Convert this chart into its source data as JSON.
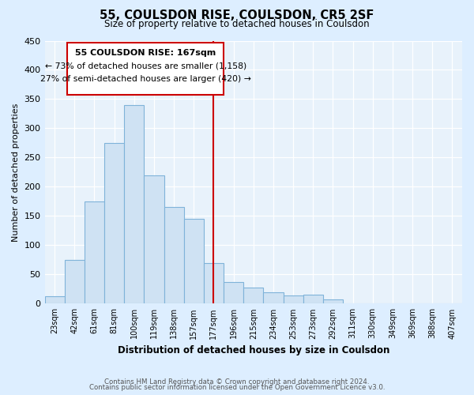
{
  "title": "55, COULSDON RISE, COULSDON, CR5 2SF",
  "subtitle": "Size of property relative to detached houses in Coulsdon",
  "xlabel": "Distribution of detached houses by size in Coulsdon",
  "ylabel": "Number of detached properties",
  "bar_labels": [
    "23sqm",
    "42sqm",
    "61sqm",
    "81sqm",
    "100sqm",
    "119sqm",
    "138sqm",
    "157sqm",
    "177sqm",
    "196sqm",
    "215sqm",
    "234sqm",
    "253sqm",
    "273sqm",
    "292sqm",
    "311sqm",
    "330sqm",
    "349sqm",
    "369sqm",
    "388sqm",
    "407sqm"
  ],
  "bar_values": [
    13,
    75,
    175,
    275,
    340,
    220,
    165,
    145,
    70,
    37,
    28,
    19,
    14,
    16,
    7,
    0,
    0,
    0,
    0,
    0,
    0
  ],
  "bar_color": "#cfe2f3",
  "bar_edge_color": "#7fb3d9",
  "vline_color": "#cc0000",
  "annotation_title": "55 COULSDON RISE: 167sqm",
  "annotation_line1": "← 73% of detached houses are smaller (1,158)",
  "annotation_line2": "27% of semi-detached houses are larger (420) →",
  "annotation_box_edge": "#cc0000",
  "annotation_box_fill": "#ffffff",
  "ylim": [
    0,
    450
  ],
  "footer1": "Contains HM Land Registry data © Crown copyright and database right 2024.",
  "footer2": "Contains public sector information licensed under the Open Government Licence v3.0.",
  "bg_color": "#ddeeff",
  "plot_bg_color": "#e8f2fb",
  "grid_color": "#ffffff"
}
